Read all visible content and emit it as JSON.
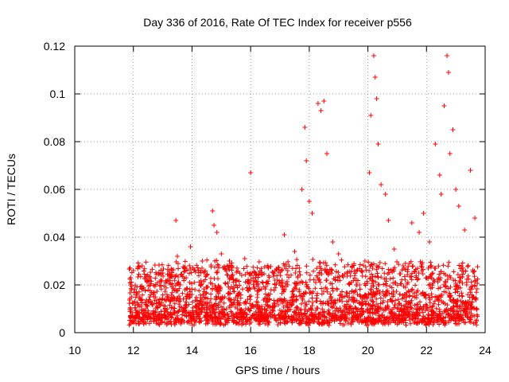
{
  "chart_data": {
    "type": "scatter",
    "title": "Day 336 of 2016, Rate Of TEC Index for receiver p556",
    "xlabel": "GPS time / hours",
    "ylabel": "ROTI / TECUs",
    "xlim": [
      10,
      24
    ],
    "ylim": [
      0,
      0.12
    ],
    "x_ticks": [
      10,
      12,
      14,
      16,
      18,
      20,
      22,
      24
    ],
    "x_tick_labels": [
      "10",
      "12",
      "14",
      "16",
      "18",
      "20",
      "22",
      "24"
    ],
    "y_ticks": [
      0,
      0.02,
      0.04,
      0.06,
      0.08,
      0.1,
      0.12
    ],
    "y_tick_labels": [
      "0",
      "0.02",
      "0.04",
      "0.06",
      "0.08",
      "0.1",
      "0.12"
    ],
    "grid": true,
    "marker": "+",
    "color": "#ff0000",
    "series": [
      {
        "name": "ROTI",
        "x": [
          11.9,
          12.0,
          12.1,
          12.2,
          12.3,
          12.5,
          12.7,
          13.0,
          13.2,
          13.45,
          13.5,
          13.6,
          13.8,
          13.95,
          14.1,
          14.35,
          14.5,
          14.7,
          14.75,
          14.85,
          15.0,
          15.2,
          15.5,
          15.8,
          16.0,
          16.05,
          16.3,
          16.6,
          16.9,
          17.15,
          17.5,
          17.75,
          17.85,
          17.9,
          18.0,
          18.1,
          18.3,
          18.4,
          18.5,
          18.6,
          18.8,
          19.0,
          19.3,
          19.6,
          19.9,
          20.05,
          20.1,
          20.2,
          20.25,
          20.3,
          20.35,
          20.45,
          20.6,
          20.7,
          20.9,
          21.2,
          21.5,
          21.75,
          21.9,
          22.1,
          22.3,
          22.45,
          22.5,
          22.6,
          22.7,
          22.75,
          22.8,
          22.9,
          23.0,
          23.1,
          23.3,
          23.5,
          23.65
        ],
        "y": [
          0.02,
          0.026,
          0.017,
          0.015,
          0.028,
          0.022,
          0.016,
          0.025,
          0.014,
          0.047,
          0.032,
          0.02,
          0.015,
          0.036,
          0.018,
          0.03,
          0.024,
          0.051,
          0.045,
          0.042,
          0.033,
          0.028,
          0.02,
          0.031,
          0.067,
          0.025,
          0.018,
          0.027,
          0.022,
          0.041,
          0.034,
          0.06,
          0.086,
          0.072,
          0.055,
          0.05,
          0.096,
          0.093,
          0.097,
          0.075,
          0.038,
          0.033,
          0.025,
          0.02,
          0.03,
          0.067,
          0.091,
          0.116,
          0.107,
          0.098,
          0.079,
          0.062,
          0.058,
          0.047,
          0.035,
          0.028,
          0.046,
          0.042,
          0.05,
          0.038,
          0.079,
          0.066,
          0.058,
          0.095,
          0.116,
          0.109,
          0.075,
          0.085,
          0.06,
          0.053,
          0.043,
          0.068,
          0.048
        ]
      }
    ],
    "noise_band": {
      "x_range": [
        11.85,
        23.75
      ],
      "y_min": 0.003,
      "y_typical_max": 0.03
    }
  }
}
